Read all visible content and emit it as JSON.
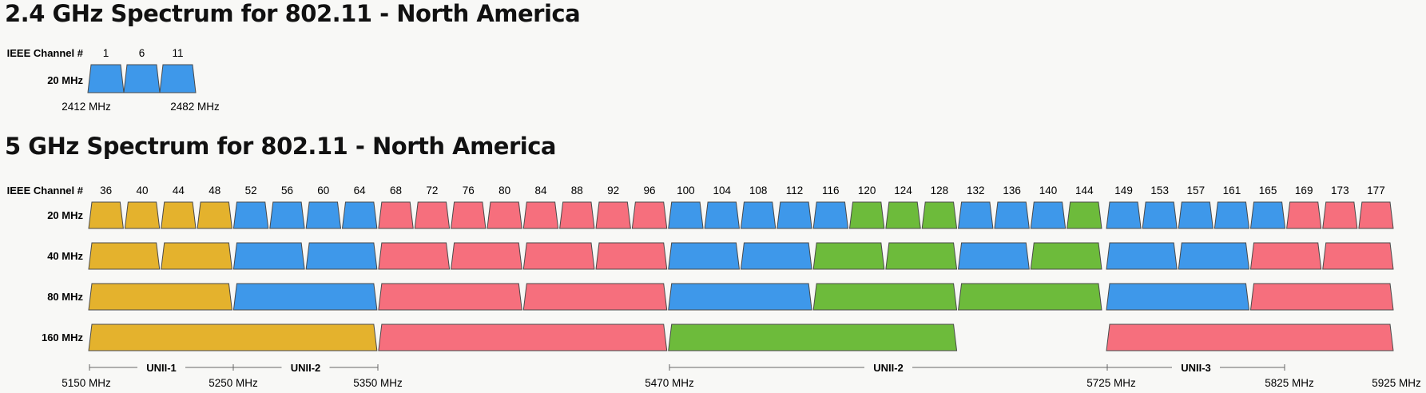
{
  "colors": {
    "yellow": "#e4b22d",
    "blue": "#3e98ea",
    "red": "#f66f7d",
    "green": "#6dbb3b",
    "outline": "#4a4a4a"
  },
  "band24": {
    "title": "2.4 GHz Spectrum for 802.11 - North America",
    "channel_header": "IEEE Channel #",
    "row_label": "20 MHz",
    "channels": [
      "1",
      "6",
      "11"
    ],
    "channel_color": "blue",
    "freq_start": "2412 MHz",
    "freq_end": "2482 MHz"
  },
  "band5": {
    "title": "5 GHz Spectrum for 802.11 - North America",
    "channel_header": "IEEE Channel #",
    "channels": [
      "36",
      "40",
      "44",
      "48",
      "52",
      "56",
      "60",
      "64",
      "68",
      "72",
      "76",
      "80",
      "84",
      "88",
      "92",
      "96",
      "100",
      "104",
      "108",
      "112",
      "116",
      "120",
      "124",
      "128",
      "132",
      "136",
      "140",
      "144",
      "149",
      "153",
      "157",
      "161",
      "165",
      "169",
      "173",
      "177"
    ],
    "rows": [
      {
        "label": "20 MHz",
        "colors": [
          "yellow",
          "yellow",
          "yellow",
          "yellow",
          "blue",
          "blue",
          "blue",
          "blue",
          "red",
          "red",
          "red",
          "red",
          "red",
          "red",
          "red",
          "red",
          "blue",
          "blue",
          "blue",
          "blue",
          "blue",
          "green",
          "green",
          "green",
          "blue",
          "blue",
          "blue",
          "green",
          "blue",
          "blue",
          "blue",
          "blue",
          "blue",
          "red",
          "red",
          "red"
        ]
      },
      {
        "label": "40 MHz",
        "colors": [
          "yellow",
          "yellow",
          "blue",
          "blue",
          "red",
          "red",
          "red",
          "red",
          "blue",
          "blue",
          "green",
          "green",
          "blue",
          "green",
          "blue",
          "blue",
          "red",
          "red"
        ]
      },
      {
        "label": "80 MHz",
        "colors": [
          "yellow",
          "blue",
          "red",
          "red",
          "blue",
          "green",
          "green",
          "blue",
          "red"
        ]
      },
      {
        "label": "160 MHz",
        "colors": [
          "yellow",
          "red",
          "green",
          "red"
        ]
      }
    ],
    "sub_bands": [
      {
        "name": "UNII-1"
      },
      {
        "name": "UNII-2"
      },
      {
        "name": "UNII-2"
      },
      {
        "name": "UNII-3"
      }
    ],
    "freqs": [
      "5150 MHz",
      "5250 MHz",
      "5350 MHz",
      "5470 MHz",
      "5725 MHz",
      "5825 MHz",
      "5925 MHz"
    ]
  }
}
